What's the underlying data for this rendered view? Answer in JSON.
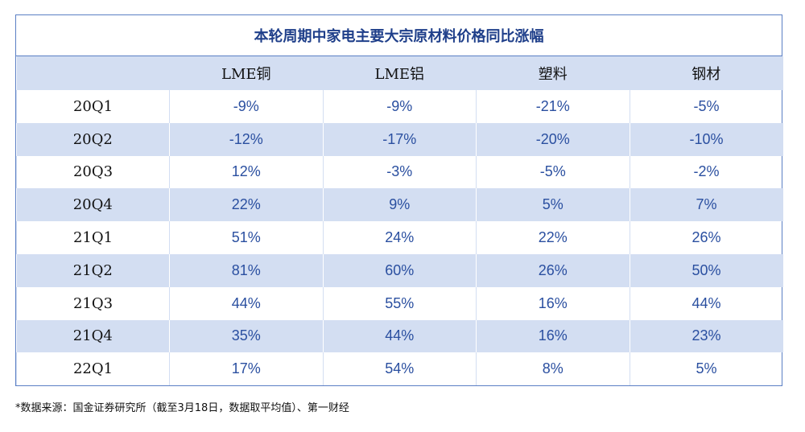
{
  "title": "本轮周期中家电主要大宗原材料价格同比涨幅",
  "columns": [
    "",
    "LME铜",
    "LME铝",
    "塑料",
    "钢材"
  ],
  "rows": [
    {
      "period": "20Q1",
      "values": [
        "-9%",
        "-9%",
        "-21%",
        "-5%"
      ]
    },
    {
      "period": "20Q2",
      "values": [
        "-12%",
        "-17%",
        "-20%",
        "-10%"
      ]
    },
    {
      "period": "20Q3",
      "values": [
        "12%",
        "-3%",
        "-5%",
        "-2%"
      ]
    },
    {
      "period": "20Q4",
      "values": [
        "22%",
        "9%",
        "5%",
        "7%"
      ]
    },
    {
      "period": "21Q1",
      "values": [
        "51%",
        "24%",
        "22%",
        "26%"
      ]
    },
    {
      "period": "21Q2",
      "values": [
        "81%",
        "60%",
        "26%",
        "50%"
      ]
    },
    {
      "period": "21Q3",
      "values": [
        "44%",
        "55%",
        "16%",
        "44%"
      ]
    },
    {
      "period": "21Q4",
      "values": [
        "35%",
        "44%",
        "16%",
        "23%"
      ]
    },
    {
      "period": "22Q1",
      "values": [
        "17%",
        "54%",
        "8%",
        "5%"
      ]
    }
  ],
  "footnote": "*数据来源：国金证券研究所（截至3月18日，数据取平均值）、第一财经",
  "colors": {
    "border": "#5b7fc4",
    "header_fill": "#d3def2",
    "title_text": "#1f3f8a",
    "value_text": "#2a4fa0"
  }
}
